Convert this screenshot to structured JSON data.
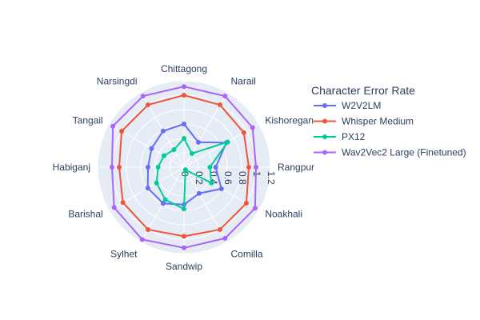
{
  "chart_data": {
    "type": "radar",
    "legend_title": "Character Error Rate",
    "legend_position": "right",
    "grid": true,
    "radial_range": [
      0,
      1.2
    ],
    "radial_ticks": [
      0,
      0.2,
      0.4,
      0.6,
      0.8,
      1,
      1.2
    ],
    "radial_tick_labels": [
      "0",
      "0.2",
      "0.4",
      "0.6",
      "0.8",
      "1",
      "1.2"
    ],
    "categories": [
      "Rangpur",
      "Kishoreganj",
      "Narail",
      "Chittagong",
      "Narsingdi",
      "Tangail",
      "Habiganj",
      "Barishal",
      "Sylhet",
      "Sandwip",
      "Comilla",
      "Noakhali"
    ],
    "category_labels": [
      "Rangpur",
      "Kishoregan",
      "Narail",
      "Chittagong",
      "Narsingdi",
      "Tangail",
      "Habiganj",
      "Barishal",
      "Sylhet",
      "Sandwip",
      "Comilla",
      "Noakhali"
    ],
    "series": [
      {
        "name": "W2V2LM",
        "color": "#636efa",
        "values": [
          0.44,
          0.68,
          0.4,
          0.6,
          0.58,
          0.52,
          0.5,
          0.58,
          0.58,
          0.52,
          0.42,
          0.6
        ]
      },
      {
        "name": "Whisper Medium",
        "color": "#ef553b",
        "values": [
          0.9,
          0.96,
          1.0,
          1.0,
          1.0,
          1.0,
          0.9,
          0.98,
          1.0,
          0.96,
          1.0,
          1.0
        ]
      },
      {
        "name": "PX12",
        "color": "#00cc96",
        "values": [
          0.36,
          0.7,
          0.22,
          0.4,
          0.28,
          0.32,
          0.36,
          0.44,
          0.52,
          0.58,
          0.04,
          0.44
        ]
      },
      {
        "name": "Wav2Vec2 Large (Finetuned)",
        "color": "#ab63fa",
        "values": [
          1.0,
          1.1,
          1.14,
          1.12,
          1.14,
          1.14,
          1.0,
          1.12,
          1.16,
          1.12,
          1.14,
          1.14
        ]
      }
    ]
  }
}
